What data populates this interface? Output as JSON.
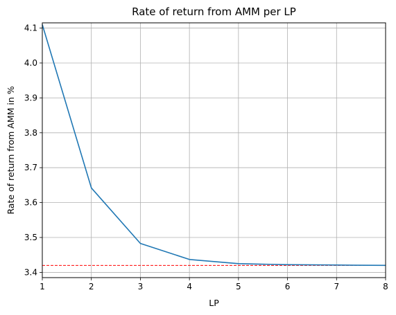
{
  "chart_data": {
    "type": "line",
    "title": "Rate of return from AMM per LP",
    "xlabel": "LP",
    "ylabel": "Rate of return from AMM in %",
    "xlim": [
      1,
      8
    ],
    "ylim": [
      3.385,
      4.115
    ],
    "x_ticks": [
      1,
      2,
      3,
      4,
      5,
      6,
      7,
      8
    ],
    "y_ticks": [
      3.4,
      3.5,
      3.6,
      3.7,
      3.8,
      3.9,
      4.0,
      4.1
    ],
    "y_tick_labels": [
      "3.4",
      "3.5",
      "3.6",
      "3.7",
      "3.8",
      "3.9",
      "4.0",
      "4.1"
    ],
    "grid": true,
    "series": [
      {
        "color": "#1f77b4",
        "x": [
          1,
          2,
          3,
          4,
          5,
          6,
          7,
          8
        ],
        "y": [
          4.11,
          3.642,
          3.483,
          3.437,
          3.425,
          3.422,
          3.421,
          3.42
        ]
      }
    ],
    "reference_lines": [
      {
        "orientation": "horizontal",
        "y": 3.42,
        "color": "#ff0000",
        "style": "dashed"
      }
    ]
  }
}
